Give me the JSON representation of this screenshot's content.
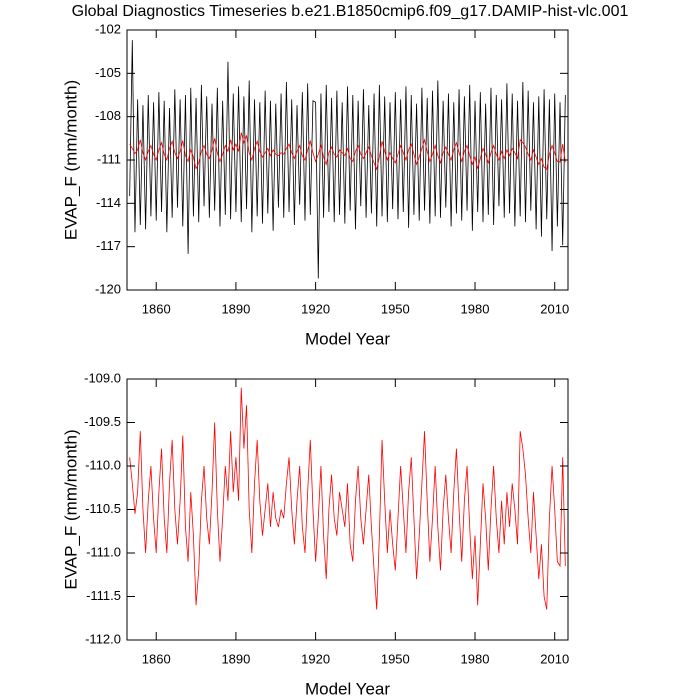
{
  "chart_data": [
    {
      "type": "line",
      "title": "Global Diagnostics Timeseries b.e21.B1850cmip6.f09_g17.DAMIP-hist-vlc.001",
      "x_label": "Model Year",
      "y_label": "EVAP_F (mm/month)",
      "x": [
        1850,
        1851,
        1852,
        1853,
        1854,
        1855,
        1856,
        1857,
        1858,
        1859,
        1860,
        1861,
        1862,
        1863,
        1864,
        1865,
        1866,
        1867,
        1868,
        1869,
        1870,
        1871,
        1872,
        1873,
        1874,
        1875,
        1876,
        1877,
        1878,
        1879,
        1880,
        1881,
        1882,
        1883,
        1884,
        1885,
        1886,
        1887,
        1888,
        1889,
        1890,
        1891,
        1892,
        1893,
        1894,
        1895,
        1896,
        1897,
        1898,
        1899,
        1900,
        1901,
        1902,
        1903,
        1904,
        1905,
        1906,
        1907,
        1908,
        1909,
        1910,
        1911,
        1912,
        1913,
        1914,
        1915,
        1916,
        1917,
        1918,
        1919,
        1920,
        1921,
        1922,
        1923,
        1924,
        1925,
        1926,
        1927,
        1928,
        1929,
        1930,
        1931,
        1932,
        1933,
        1934,
        1935,
        1936,
        1937,
        1938,
        1939,
        1940,
        1941,
        1942,
        1943,
        1944,
        1945,
        1946,
        1947,
        1948,
        1949,
        1950,
        1951,
        1952,
        1953,
        1954,
        1955,
        1956,
        1957,
        1958,
        1959,
        1960,
        1961,
        1962,
        1963,
        1964,
        1965,
        1966,
        1967,
        1968,
        1969,
        1970,
        1971,
        1972,
        1973,
        1974,
        1975,
        1976,
        1977,
        1978,
        1979,
        1980,
        1981,
        1982,
        1983,
        1984,
        1985,
        1986,
        1987,
        1988,
        1989,
        1990,
        1991,
        1992,
        1993,
        1994,
        1995,
        1996,
        1997,
        1998,
        1999,
        2000,
        2001,
        2002,
        2003,
        2004,
        2005,
        2006,
        2007,
        2008,
        2009,
        2010,
        2011,
        2012,
        2013,
        2014
      ],
      "series": [
        {
          "color": "#000000",
          "values": [
            -113.5,
            -102.7,
            -116.0,
            -106.8,
            -115.5,
            -107.2,
            -115.8,
            -106.5,
            -114.9,
            -107.0,
            -115.2,
            -106.3,
            -114.6,
            -106.9,
            -116.0,
            -107.4,
            -115.0,
            -106.1,
            -114.3,
            -106.8,
            -115.6,
            -106.5,
            -117.5,
            -106.0,
            -114.9,
            -106.7,
            -115.3,
            -105.8,
            -114.2,
            -106.6,
            -115.0,
            -107.1,
            -114.5,
            -106.0,
            -115.6,
            -106.9,
            -114.8,
            -104.2,
            -115.1,
            -106.4,
            -114.6,
            -105.9,
            -115.3,
            -106.6,
            -114.4,
            -105.5,
            -116.0,
            -106.8,
            -114.9,
            -107.0,
            -115.4,
            -106.2,
            -114.7,
            -106.9,
            -115.9,
            -107.1,
            -114.3,
            -106.4,
            -115.0,
            -105.6,
            -114.6,
            -106.8,
            -115.5,
            -107.2,
            -114.1,
            -106.3,
            -115.2,
            -105.7,
            -114.8,
            -106.9,
            -107.0,
            -119.2,
            -106.4,
            -115.0,
            -105.8,
            -114.6,
            -106.7,
            -115.3,
            -106.2,
            -114.8,
            -107.0,
            -115.4,
            -105.9,
            -114.5,
            -106.5,
            -115.8,
            -106.9,
            -114.2,
            -106.1,
            -115.0,
            -107.2,
            -114.7,
            -106.4,
            -115.6,
            -105.8,
            -114.9,
            -106.6,
            -115.3,
            -107.0,
            -114.4,
            -106.3,
            -115.1,
            -106.8,
            -114.6,
            -105.9,
            -115.7,
            -106.5,
            -114.8,
            -107.1,
            -115.2,
            -106.0,
            -114.5,
            -106.7,
            -115.4,
            -106.2,
            -114.9,
            -105.5,
            -115.0,
            -106.9,
            -114.3,
            -106.4,
            -115.6,
            -107.0,
            -114.7,
            -106.1,
            -115.2,
            -106.6,
            -114.5,
            -105.8,
            -115.9,
            -106.9,
            -114.6,
            -106.3,
            -115.3,
            -107.1,
            -114.8,
            -106.0,
            -115.5,
            -106.5,
            -114.2,
            -106.8,
            -115.0,
            -105.7,
            -114.7,
            -106.4,
            -115.6,
            -106.9,
            -114.9,
            -105.6,
            -115.3,
            -106.2,
            -114.5,
            -107.0,
            -115.8,
            -106.6,
            -116.3,
            -106.1,
            -115.1,
            -106.8,
            -117.3,
            -106.4,
            -115.6,
            -107.0,
            -116.9,
            -106.5
          ]
        },
        {
          "color": "#ff0000",
          "values": [
            -109.9,
            -110.2,
            -110.55,
            -110.3,
            -109.6,
            -110.5,
            -111.0,
            -110.4,
            -110.0,
            -110.6,
            -111.0,
            -110.3,
            -109.8,
            -110.6,
            -111.0,
            -110.2,
            -109.7,
            -110.5,
            -110.9,
            -110.4,
            -109.65,
            -110.7,
            -111.1,
            -110.3,
            -110.8,
            -111.6,
            -111.2,
            -110.4,
            -110.0,
            -110.6,
            -110.9,
            -110.3,
            -109.5,
            -110.5,
            -111.1,
            -110.6,
            -110.0,
            -110.4,
            -109.6,
            -110.3,
            -109.9,
            -110.4,
            -109.1,
            -109.8,
            -109.3,
            -110.5,
            -111.0,
            -110.2,
            -109.7,
            -110.4,
            -110.8,
            -110.5,
            -110.2,
            -110.7,
            -110.3,
            -110.6,
            -110.7,
            -110.5,
            -110.6,
            -110.2,
            -109.9,
            -110.5,
            -110.9,
            -110.4,
            -110.0,
            -110.7,
            -111.0,
            -110.3,
            -109.7,
            -110.5,
            -111.1,
            -110.6,
            -110.0,
            -110.8,
            -111.3,
            -110.5,
            -110.1,
            -110.6,
            -110.8,
            -110.3,
            -110.5,
            -110.7,
            -110.2,
            -110.9,
            -111.1,
            -110.4,
            -110.0,
            -110.6,
            -110.9,
            -110.5,
            -110.1,
            -110.7,
            -111.2,
            -111.65,
            -110.8,
            -109.7,
            -110.4,
            -111.0,
            -110.5,
            -110.9,
            -111.2,
            -110.6,
            -110.0,
            -110.5,
            -111.0,
            -110.3,
            -109.9,
            -110.6,
            -111.3,
            -110.8,
            -110.2,
            -109.6,
            -110.4,
            -111.1,
            -110.6,
            -110.0,
            -110.7,
            -111.2,
            -110.5,
            -110.1,
            -110.6,
            -111.0,
            -110.3,
            -109.8,
            -110.5,
            -111.1,
            -110.4,
            -110.0,
            -110.7,
            -111.3,
            -110.8,
            -111.6,
            -110.9,
            -110.2,
            -110.6,
            -111.2,
            -110.5,
            -110.0,
            -110.6,
            -111.0,
            -110.4,
            -110.9,
            -110.3,
            -110.7,
            -110.2,
            -110.5,
            -110.9,
            -109.6,
            -109.8,
            -110.1,
            -110.6,
            -111.0,
            -110.3,
            -110.8,
            -111.3,
            -110.9,
            -111.5,
            -111.65,
            -110.6,
            -110.0,
            -110.5,
            -111.1,
            -111.15,
            -109.9,
            -111.15
          ]
        }
      ],
      "xlim": [
        1849,
        2015
      ],
      "xticks": [
        1860,
        1890,
        1920,
        1950,
        1980,
        2010
      ],
      "ylim": [
        -120,
        -102
      ],
      "yticks": [
        -120,
        -117,
        -114,
        -111,
        -108,
        -105,
        -102
      ]
    },
    {
      "type": "line",
      "x_label": "Model Year",
      "y_label": "EVAP_F (mm/month)",
      "x": [
        1850,
        1851,
        1852,
        1853,
        1854,
        1855,
        1856,
        1857,
        1858,
        1859,
        1860,
        1861,
        1862,
        1863,
        1864,
        1865,
        1866,
        1867,
        1868,
        1869,
        1870,
        1871,
        1872,
        1873,
        1874,
        1875,
        1876,
        1877,
        1878,
        1879,
        1880,
        1881,
        1882,
        1883,
        1884,
        1885,
        1886,
        1887,
        1888,
        1889,
        1890,
        1891,
        1892,
        1893,
        1894,
        1895,
        1896,
        1897,
        1898,
        1899,
        1900,
        1901,
        1902,
        1903,
        1904,
        1905,
        1906,
        1907,
        1908,
        1909,
        1910,
        1911,
        1912,
        1913,
        1914,
        1915,
        1916,
        1917,
        1918,
        1919,
        1920,
        1921,
        1922,
        1923,
        1924,
        1925,
        1926,
        1927,
        1928,
        1929,
        1930,
        1931,
        1932,
        1933,
        1934,
        1935,
        1936,
        1937,
        1938,
        1939,
        1940,
        1941,
        1942,
        1943,
        1944,
        1945,
        1946,
        1947,
        1948,
        1949,
        1950,
        1951,
        1952,
        1953,
        1954,
        1955,
        1956,
        1957,
        1958,
        1959,
        1960,
        1961,
        1962,
        1963,
        1964,
        1965,
        1966,
        1967,
        1968,
        1969,
        1970,
        1971,
        1972,
        1973,
        1974,
        1975,
        1976,
        1977,
        1978,
        1979,
        1980,
        1981,
        1982,
        1983,
        1984,
        1985,
        1986,
        1987,
        1988,
        1989,
        1990,
        1991,
        1992,
        1993,
        1994,
        1995,
        1996,
        1997,
        1998,
        1999,
        2000,
        2001,
        2002,
        2003,
        2004,
        2005,
        2006,
        2007,
        2008,
        2009,
        2010,
        2011,
        2012,
        2013,
        2014
      ],
      "series": [
        {
          "color": "#ff0000",
          "values": [
            -109.9,
            -110.2,
            -110.55,
            -110.3,
            -109.6,
            -110.5,
            -111.0,
            -110.4,
            -110.0,
            -110.6,
            -111.0,
            -110.3,
            -109.8,
            -110.6,
            -111.0,
            -110.2,
            -109.7,
            -110.5,
            -110.9,
            -110.4,
            -109.65,
            -110.7,
            -111.1,
            -110.3,
            -110.8,
            -111.6,
            -111.2,
            -110.4,
            -110.0,
            -110.6,
            -110.9,
            -110.3,
            -109.5,
            -110.5,
            -111.1,
            -110.6,
            -110.0,
            -110.4,
            -109.6,
            -110.3,
            -109.9,
            -110.4,
            -109.1,
            -109.8,
            -109.3,
            -110.5,
            -111.0,
            -110.2,
            -109.7,
            -110.4,
            -110.8,
            -110.5,
            -110.2,
            -110.7,
            -110.3,
            -110.6,
            -110.7,
            -110.5,
            -110.6,
            -110.2,
            -109.9,
            -110.5,
            -110.9,
            -110.4,
            -110.0,
            -110.7,
            -111.0,
            -110.3,
            -109.7,
            -110.5,
            -111.1,
            -110.6,
            -110.0,
            -110.8,
            -111.3,
            -110.5,
            -110.1,
            -110.6,
            -110.8,
            -110.3,
            -110.5,
            -110.7,
            -110.2,
            -110.9,
            -111.1,
            -110.4,
            -110.0,
            -110.6,
            -110.9,
            -110.5,
            -110.1,
            -110.7,
            -111.2,
            -111.65,
            -110.8,
            -109.7,
            -110.4,
            -111.0,
            -110.5,
            -110.9,
            -111.2,
            -110.6,
            -110.0,
            -110.5,
            -111.0,
            -110.3,
            -109.9,
            -110.6,
            -111.3,
            -110.8,
            -110.2,
            -109.6,
            -110.4,
            -111.1,
            -110.6,
            -110.0,
            -110.7,
            -111.2,
            -110.5,
            -110.1,
            -110.6,
            -111.0,
            -110.3,
            -109.8,
            -110.5,
            -111.1,
            -110.4,
            -110.0,
            -110.7,
            -111.3,
            -110.8,
            -111.6,
            -110.9,
            -110.2,
            -110.6,
            -111.2,
            -110.5,
            -110.0,
            -110.6,
            -111.0,
            -110.4,
            -110.9,
            -110.3,
            -110.7,
            -110.2,
            -110.5,
            -110.9,
            -109.6,
            -109.8,
            -110.1,
            -110.6,
            -111.0,
            -110.3,
            -110.8,
            -111.3,
            -110.9,
            -111.5,
            -111.65,
            -110.6,
            -110.0,
            -110.5,
            -111.1,
            -111.15,
            -109.9,
            -111.15
          ]
        }
      ],
      "xlim": [
        1849,
        2015
      ],
      "xticks": [
        1860,
        1890,
        1920,
        1950,
        1980,
        2010
      ],
      "ylim": [
        -112,
        -109
      ],
      "yticks": [
        {
          "value": -112,
          "label": "-112.0"
        },
        -111.5,
        {
          "value": -111,
          "label": "-111.0"
        },
        -110.5,
        {
          "value": -110,
          "label": "-110.0"
        },
        -109.5,
        {
          "value": -109,
          "label": "-109.0"
        }
      ]
    }
  ]
}
